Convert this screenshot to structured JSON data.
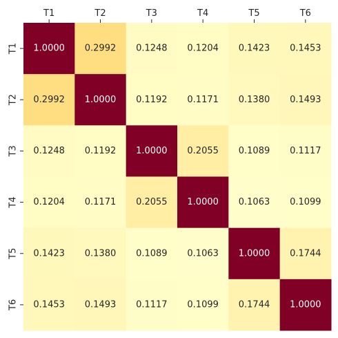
{
  "chart_data": {
    "type": "heatmap",
    "title": "",
    "xlabel": "",
    "ylabel": "",
    "x_tick_position": "top",
    "colormap": "YlOrRd",
    "value_range": [
      0.1,
      1.0
    ],
    "colorbar": false,
    "grid": false,
    "x_categories": [
      "T1",
      "T2",
      "T3",
      "T4",
      "T5",
      "T6"
    ],
    "y_categories": [
      "T1",
      "T2",
      "T3",
      "T4",
      "T5",
      "T6"
    ],
    "values": [
      [
        1.0,
        0.2992,
        0.1248,
        0.1204,
        0.1423,
        0.1453
      ],
      [
        0.2992,
        1.0,
        0.1192,
        0.1171,
        0.138,
        0.1493
      ],
      [
        0.1248,
        0.1192,
        1.0,
        0.2055,
        0.1089,
        0.1117
      ],
      [
        0.1204,
        0.1171,
        0.2055,
        1.0,
        0.1063,
        0.1099
      ],
      [
        0.1423,
        0.138,
        0.1089,
        0.1063,
        1.0,
        0.1744
      ],
      [
        0.1453,
        0.1493,
        0.1117,
        0.1099,
        0.1744,
        1.0
      ]
    ],
    "cell_labels": [
      [
        "1.0000",
        "0.2992",
        "0.1248",
        "0.1204",
        "0.1423",
        "0.1453"
      ],
      [
        "0.2992",
        "1.0000",
        "0.1192",
        "0.1171",
        "0.1380",
        "0.1493"
      ],
      [
        "0.1248",
        "0.1192",
        "1.0000",
        "0.2055",
        "0.1089",
        "0.1117"
      ],
      [
        "0.1204",
        "0.1171",
        "0.2055",
        "1.0000",
        "0.1063",
        "0.1099"
      ],
      [
        "0.1423",
        "0.1380",
        "0.1089",
        "0.1063",
        "1.0000",
        "0.1744"
      ],
      [
        "0.1453",
        "0.1493",
        "0.1117",
        "0.1099",
        "0.1744",
        "1.0000"
      ]
    ]
  }
}
